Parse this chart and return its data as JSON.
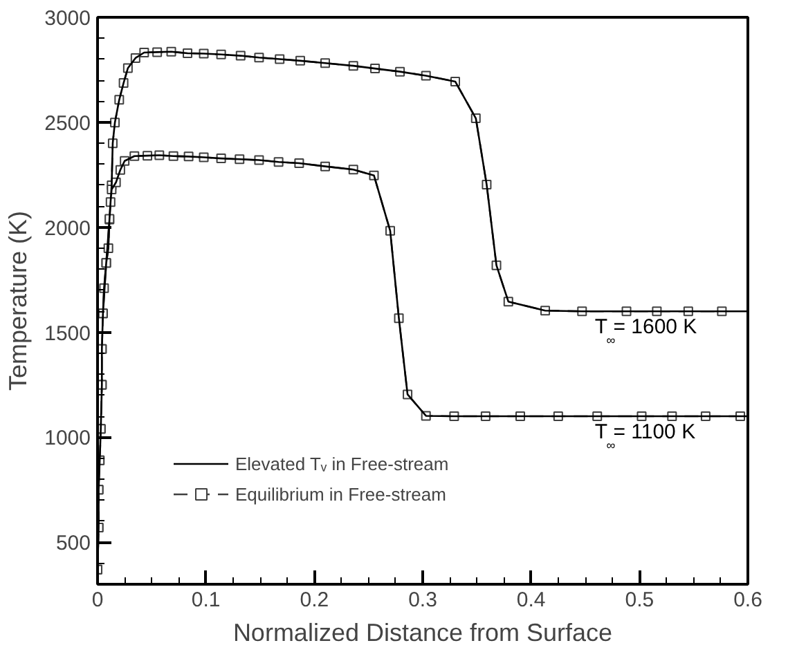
{
  "chart_data": {
    "type": "line",
    "xlabel": "Normalized Distance from Surface",
    "ylabel": "Temperature (K)",
    "xlim": [
      0,
      0.6
    ],
    "ylim": [
      300,
      3000
    ],
    "xticks": [
      0,
      0.1,
      0.2,
      0.3,
      0.4,
      0.5,
      0.6
    ],
    "yticks": [
      500,
      1000,
      1500,
      2000,
      2500,
      3000
    ],
    "grid": false,
    "legend": "bottom left",
    "annotations": [
      {
        "text": "T$_{∞}$ = 1600 K",
        "x": 0.515,
        "y": 1600
      },
      {
        "text": "T$_{∞}$ = 1100 K",
        "x": 0.515,
        "y": 1100
      }
    ],
    "series": [
      {
        "name": "Elevated Tᵥ in Free-stream",
        "color": "#000000",
        "line_style": "solid",
        "marker": "none",
        "x": [
          0,
          0.001,
          0.001,
          0.002,
          0.003,
          0.004,
          0.004,
          0.005,
          0.008,
          0.011,
          0.013,
          0.014,
          0.016,
          0.02,
          0.024,
          0.028,
          0.035,
          0.043,
          0.055,
          0.068,
          0.083,
          0.098,
          0.114,
          0.132,
          0.149,
          0.168,
          0.187,
          0.21,
          0.236,
          0.256,
          0.279,
          0.303,
          0.33,
          0.349,
          0.359,
          0.368,
          0.379,
          0.413,
          0.447,
          0.488,
          0.516,
          0.545,
          0.576,
          0.6,
          null,
          0,
          0.001,
          0.001,
          0.002,
          0.003,
          0.004,
          0.004,
          0.005,
          0.006,
          0.008,
          0.01,
          0.011,
          0.012,
          0.013,
          0.017,
          0.021,
          0.025,
          0.034,
          0.046,
          0.057,
          0.07,
          0.084,
          0.098,
          0.114,
          0.131,
          0.149,
          0.167,
          0.186,
          0.21,
          0.236,
          0.255,
          0.27,
          0.278,
          0.286,
          0.303,
          0.329,
          0.358,
          0.39,
          0.425,
          0.461,
          0.502,
          0.53,
          0.561,
          0.593,
          0.6
        ],
        "values": [
          370,
          570,
          750,
          890,
          1040,
          1250,
          1420,
          1590,
          1830,
          2037,
          2200,
          2400,
          2499,
          2607,
          2687,
          2758,
          2806,
          2832,
          2834,
          2836,
          2829,
          2827,
          2823,
          2817,
          2808,
          2801,
          2793,
          2782,
          2769,
          2756,
          2741,
          2722,
          2694,
          2519,
          2203,
          1819,
          1646,
          1603,
          1600,
          1600,
          1600,
          1600,
          1600,
          1600,
          null,
          370,
          570,
          750,
          890,
          1040,
          1250,
          1420,
          1590,
          1710,
          1830,
          1900,
          2040,
          2120,
          2180,
          2214,
          2273,
          2316,
          2339,
          2341,
          2343,
          2339,
          2337,
          2333,
          2328,
          2324,
          2320,
          2311,
          2305,
          2290,
          2275,
          2247,
          1983,
          1567,
          1204,
          1102,
          1100,
          1100,
          1100,
          1100,
          1100,
          1100,
          1100,
          1100,
          1100,
          1100
        ]
      },
      {
        "name": "Equilibrium in Free-stream",
        "color": "#404040",
        "line_style": "dashed",
        "marker": "square",
        "x": [
          0,
          0.001,
          0.001,
          0.002,
          0.003,
          0.004,
          0.004,
          0.005,
          0.008,
          0.011,
          0.013,
          0.014,
          0.016,
          0.02,
          0.024,
          0.028,
          0.035,
          0.043,
          0.055,
          0.068,
          0.083,
          0.098,
          0.114,
          0.132,
          0.149,
          0.168,
          0.187,
          0.21,
          0.236,
          0.256,
          0.279,
          0.303,
          0.33,
          0.349,
          0.359,
          0.368,
          0.379,
          0.413,
          0.447,
          0.488,
          0.516,
          0.545,
          0.576,
          null,
          0,
          0.001,
          0.001,
          0.002,
          0.003,
          0.004,
          0.004,
          0.005,
          0.006,
          0.008,
          0.01,
          0.011,
          0.012,
          0.013,
          0.017,
          0.021,
          0.025,
          0.034,
          0.046,
          0.057,
          0.07,
          0.084,
          0.098,
          0.114,
          0.131,
          0.149,
          0.167,
          0.186,
          0.21,
          0.236,
          0.255,
          0.27,
          0.278,
          0.286,
          0.303,
          0.329,
          0.358,
          0.39,
          0.425,
          0.461,
          0.502,
          0.53,
          0.561,
          0.593
        ],
        "values": [
          370,
          570,
          750,
          890,
          1040,
          1250,
          1420,
          1590,
          1830,
          2037,
          2200,
          2400,
          2499,
          2607,
          2687,
          2758,
          2806,
          2832,
          2834,
          2836,
          2829,
          2827,
          2823,
          2817,
          2808,
          2801,
          2793,
          2782,
          2769,
          2756,
          2741,
          2722,
          2694,
          2519,
          2203,
          1819,
          1646,
          1603,
          1600,
          1600,
          1600,
          1600,
          1600,
          null,
          370,
          570,
          750,
          890,
          1040,
          1250,
          1420,
          1590,
          1710,
          1830,
          1900,
          2040,
          2120,
          2180,
          2214,
          2273,
          2316,
          2339,
          2341,
          2343,
          2339,
          2337,
          2333,
          2328,
          2324,
          2320,
          2311,
          2305,
          2290,
          2275,
          2247,
          1983,
          1567,
          1204,
          1102,
          1100,
          1100,
          1100,
          1100,
          1100,
          1100,
          1100,
          1100,
          1100
        ]
      }
    ]
  }
}
